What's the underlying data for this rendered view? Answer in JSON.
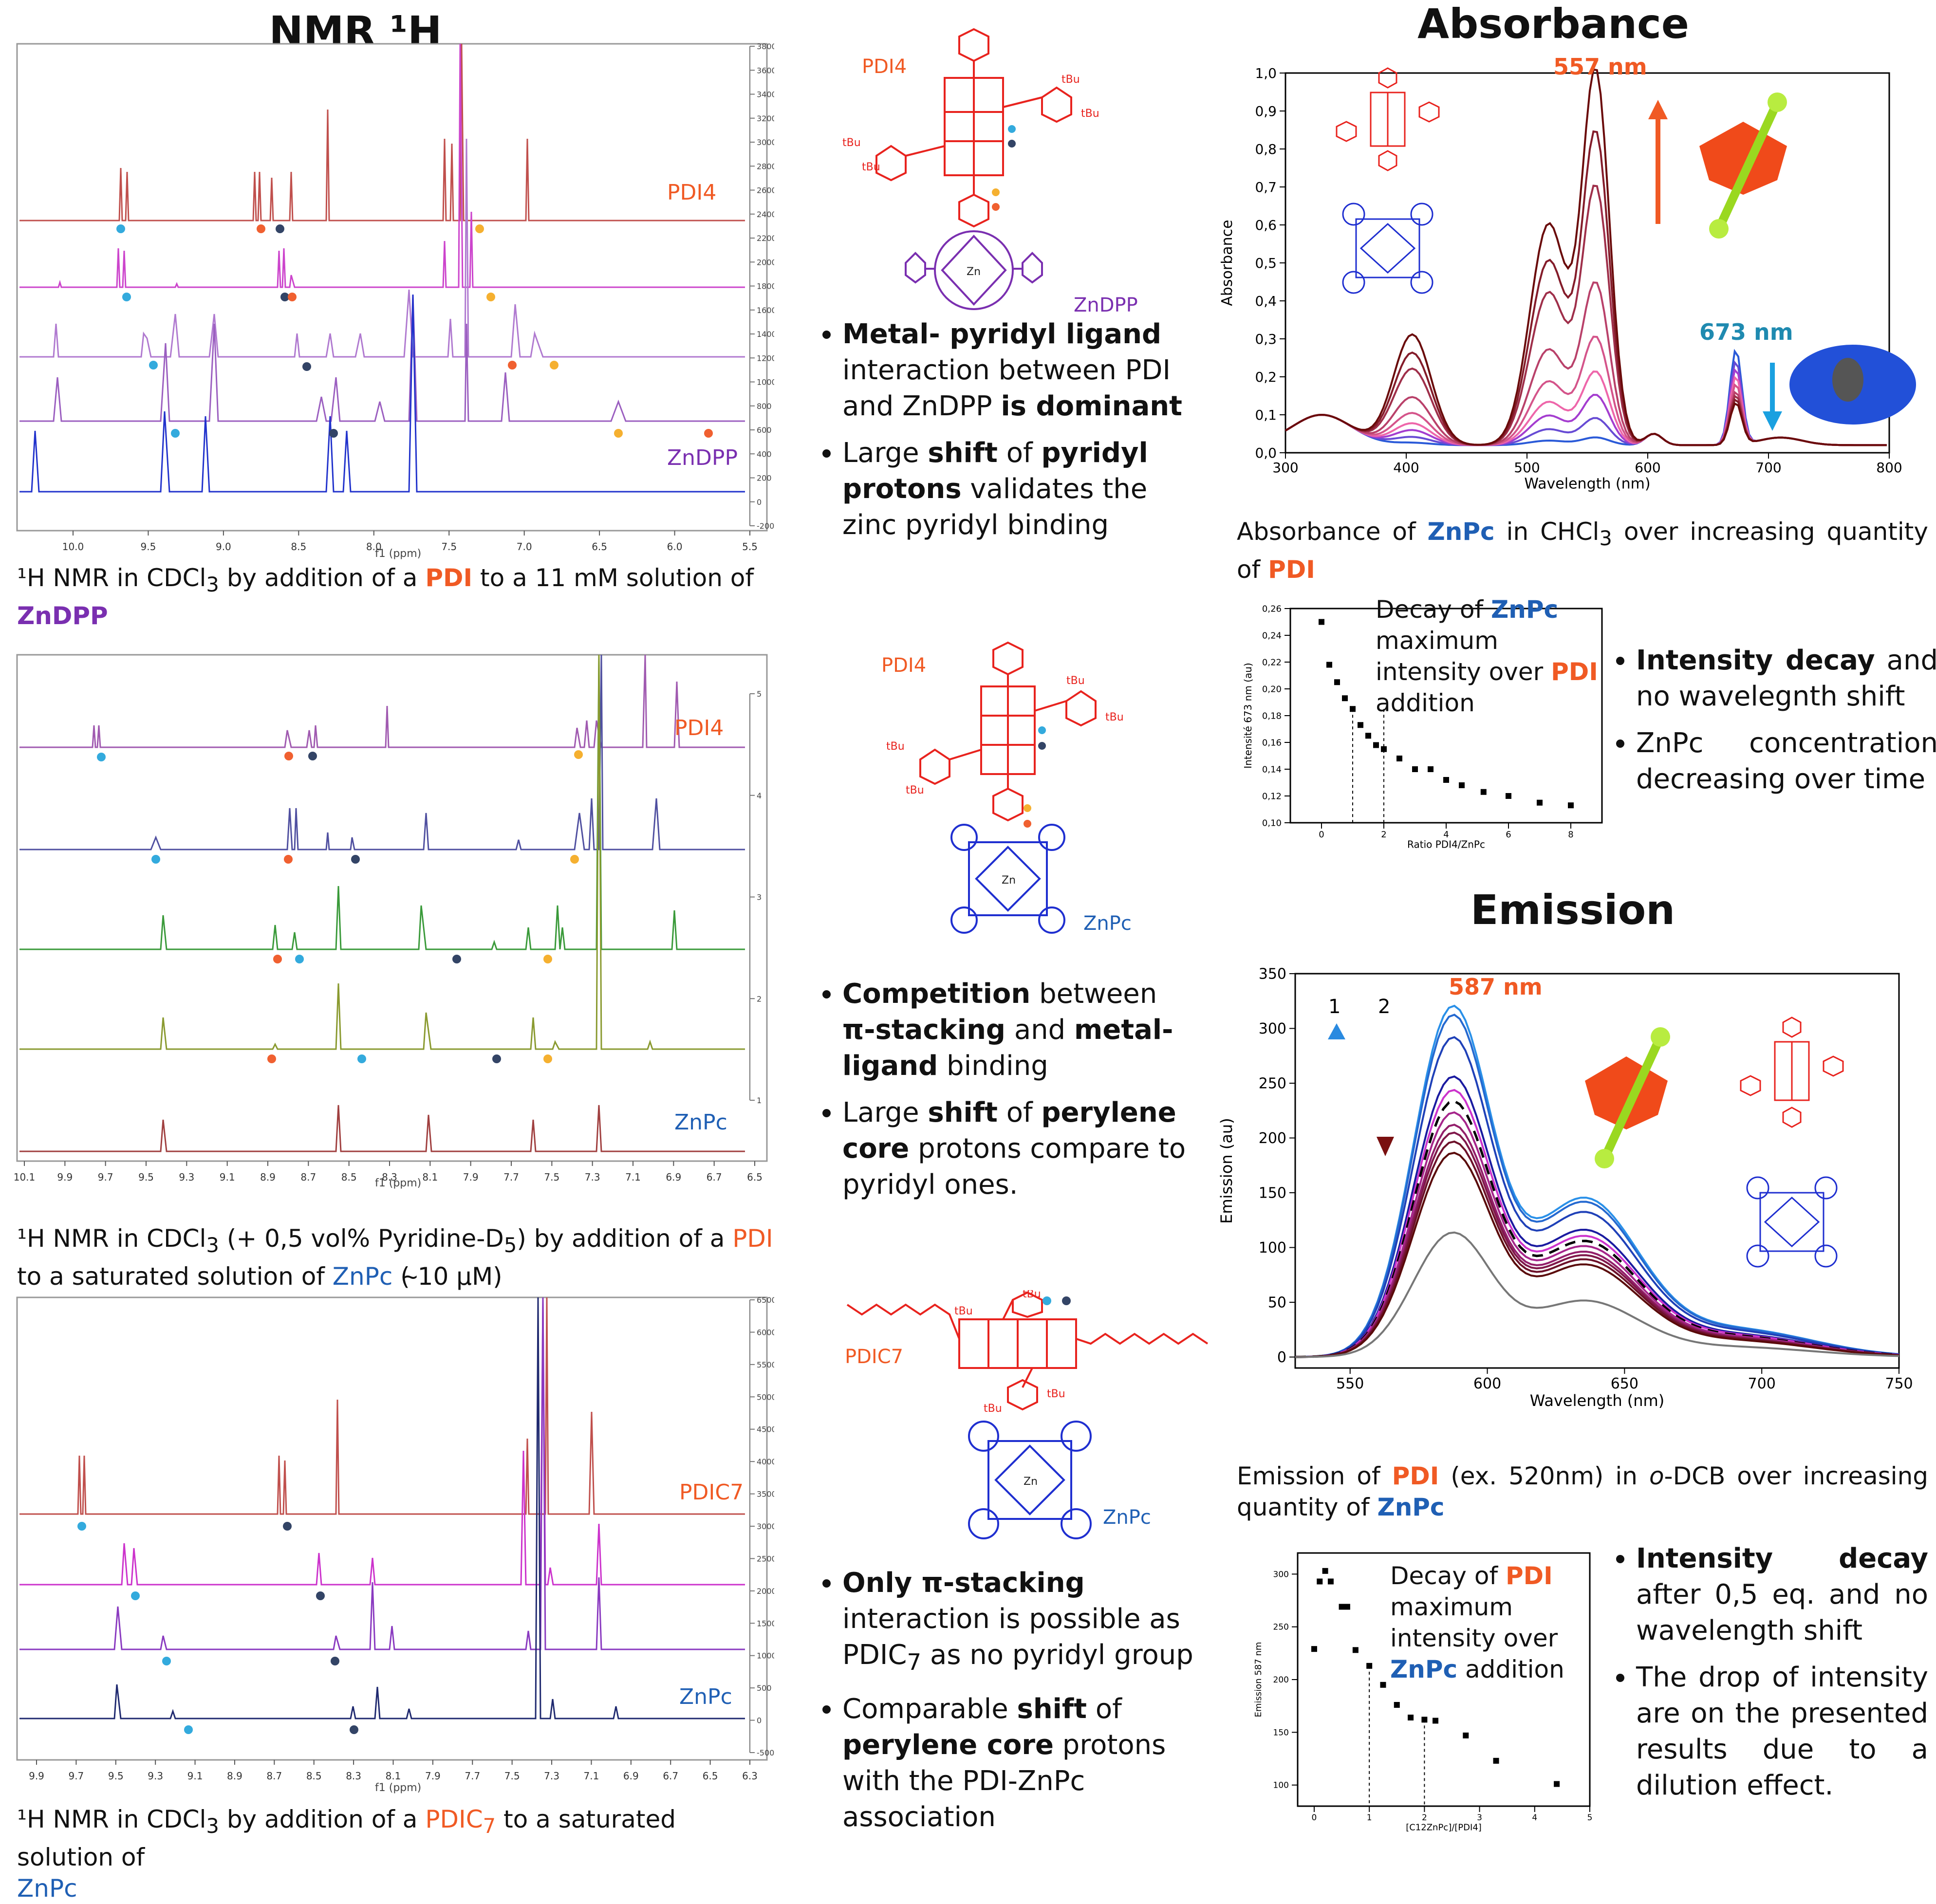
{
  "nmr_title": "NMR ¹H",
  "absorbance_title": "Absorbance",
  "emission_title": "Emission",
  "panel1": {
    "trace_labels": {
      "top": "PDI4",
      "bottom": "ZnDPP"
    },
    "x_ticks": [
      "10.0",
      "9.5",
      "9.0",
      "8.5",
      "8.0",
      "7.5",
      "7.0",
      "6.5",
      "6.0",
      "5.5"
    ],
    "y_ticks": [
      "3800",
      "3600",
      "3400",
      "3200",
      "3000",
      "2800",
      "2600",
      "2400",
      "2200",
      "2000",
      "1800",
      "1600",
      "1400",
      "1200",
      "1000",
      "800",
      "600",
      "400",
      "200",
      "0",
      "-200"
    ],
    "x_unit": "f1 (ppm)",
    "caption": {
      "pre": "¹H NMR in CDCl",
      "sub": "3",
      "mid": " by addition of a ",
      "pdi": "PDI",
      "post": " to a 11 mM solution of ",
      "target": "ZnDPP"
    }
  },
  "panel2": {
    "trace_labels": {
      "top": "PDI4",
      "bottom": "ZnPc"
    },
    "x_ticks": [
      "10.1",
      "9.9",
      "9.7",
      "9.5",
      "9.3",
      "9.1",
      "8.9",
      "8.7",
      "8.5",
      "8.3",
      "8.1",
      "7.9",
      "7.7",
      "7.5",
      "7.3",
      "7.1",
      "6.9",
      "6.7",
      "6.5"
    ],
    "y_ticks": [
      "5",
      "4",
      "3",
      "2",
      "1"
    ],
    "x_unit": "f1 (ppm)",
    "caption": {
      "pre": "¹H NMR in CDCl",
      "sub": "3",
      "mid": " (+ 0,5 vol% Pyridine-D",
      "sub2": "5",
      "mid2": ") by addition of a ",
      "pdi": "PDI",
      "post": " to a saturated solution of ",
      "target": "ZnPc",
      "post2": " ( ̴10 µM)"
    }
  },
  "panel3": {
    "trace_labels": {
      "top": "PDIC7",
      "bottom": "ZnPc"
    },
    "x_ticks": [
      "9.9",
      "9.7",
      "9.5",
      "9.3",
      "9.1",
      "8.9",
      "8.7",
      "8.5",
      "8.3",
      "8.1",
      "7.9",
      "7.7",
      "7.5",
      "7.3",
      "7.1",
      "6.9",
      "6.7",
      "6.5",
      "6.3"
    ],
    "y_ticks": [
      "6500",
      "6000",
      "5500",
      "5000",
      "4500",
      "4000",
      "3500",
      "3000",
      "2500",
      "2000",
      "1500",
      "1000",
      "500",
      "0",
      "-500"
    ],
    "x_unit": "f1 (ppm)",
    "caption": {
      "pre": "¹H NMR in CDCl",
      "sub": "3",
      "mid": " by addition of a ",
      "pdi": "PDIC",
      "pdisub": "7",
      "post": " to a saturated solution of ",
      "target": "ZnPc"
    }
  },
  "structures": {
    "s1_top": "PDI4",
    "s1_bottom": "ZnDPP",
    "s2_top": "PDI4",
    "s2_bottom": "ZnPc",
    "s3_top": "PDIC7",
    "s3_bottom": "ZnPc",
    "tbu": "tBu",
    "zn": "Zn"
  },
  "bullets1": [
    {
      "b1": "Metal- pyridyl ligand",
      "t1": " interaction between PDI and ZnDPP ",
      "b2": "is dominant"
    },
    {
      "t0": "Large ",
      "b1": "shift",
      "t1": " of ",
      "b2": "pyridyl protons",
      "t2": " validates the zinc pyridyl binding"
    }
  ],
  "bullets2": [
    {
      "b1": "Competition",
      "t1": " between ",
      "b2": "π-stacking",
      "t2": " and ",
      "b3": "metal-ligand",
      "t3": " binding"
    },
    {
      "t0": "Large ",
      "b1": "shift",
      "t1": " of ",
      "b2": "perylene core",
      "t2": " protons compare to pyridyl ones."
    }
  ],
  "bullets3": [
    {
      "b1": "Only π-stacking",
      "t1": " interaction is possible as PDIC",
      "sub": "7",
      "t2": " as no pyridyl group"
    },
    {
      "t0": "Comparable ",
      "b1": "shift",
      "t1": " of ",
      "b2": "perylene core",
      "t2": " protons with the PDI-ZnPc association"
    }
  ],
  "absorbance": {
    "peak1": "557 nm",
    "peak2": "673 nm",
    "caption": {
      "pre": "Absorbance of ",
      "b1": "ZnPc",
      "mid": " in CHCl",
      "sub": "3",
      "post": " over increasing quantity of ",
      "b2": "PDI"
    }
  },
  "decay1": {
    "title_pre": "Decay of ",
    "title_b": "ZnPc",
    "title_mid": " maximum intensity over ",
    "title_b2": "PDI",
    "title_post": " addition",
    "bullets": [
      {
        "b1": "Intensity decay",
        "t1": " and no wavelegnth shift"
      },
      {
        "t0": "ZnPc concentration decreasing over time"
      }
    ]
  },
  "emission": {
    "peak": "587 nm",
    "arrow1": "1",
    "arrow2": "2",
    "caption": {
      "pre": "Emission of ",
      "b1": "PDI",
      "mid": " (ex. 520nm) in ",
      "ital": "o",
      "mid2": "-DCB over increasing quantity of ",
      "b2": "ZnPc"
    }
  },
  "decay2": {
    "title_pre": "Decay of ",
    "title_b": "PDI",
    "title_mid": " maximum intensity over ",
    "title_b2": "ZnPc",
    "title_post": " addition",
    "bullets": [
      {
        "b1": "Intensity decay",
        "t1": " after 0,5 eq. and no wavelength shift"
      },
      {
        "t0": "The drop of intensity are on the presented results due to a dilution effect."
      }
    ]
  },
  "chart_data": [
    {
      "type": "line",
      "xlabel": "Wavelength (nm)",
      "ylabel": "Absorbance",
      "xlim": [
        300,
        800
      ],
      "ylim": [
        0,
        1.0
      ],
      "x_ticks": [
        "300",
        "400",
        "500",
        "600",
        "700",
        "800"
      ],
      "y_ticks": [
        "0,0",
        "0,1",
        "0,2",
        "0,3",
        "0,4",
        "0,5",
        "0,6",
        "0,7",
        "0,8",
        "0,9",
        "1,0"
      ],
      "series_peak557": [
        0.02,
        0.07,
        0.13,
        0.19,
        0.28,
        0.42,
        0.67,
        0.81,
        0.97
      ],
      "series_peak673": [
        0.25,
        0.22,
        0.2,
        0.18,
        0.16,
        0.14,
        0.13,
        0.12,
        0.11
      ]
    },
    {
      "type": "scatter",
      "xlabel": "Ratio PDI4/ZnPc",
      "ylabel": "Intensité 673 nm (au)",
      "xlim": [
        -1,
        9
      ],
      "ylim": [
        0.1,
        0.26
      ],
      "x_ticks": [
        "0",
        "2",
        "4",
        "6",
        "8"
      ],
      "y_ticks": [
        "0,10",
        "0,12",
        "0,14",
        "0,16",
        "0,18",
        "0,20",
        "0,22",
        "0,24",
        "0,26"
      ],
      "x": [
        0,
        0.25,
        0.5,
        0.75,
        1.0,
        1.25,
        1.5,
        1.75,
        2.0,
        2.5,
        3.0,
        3.5,
        4.0,
        4.5,
        5.2,
        6.0,
        7.0,
        8.0
      ],
      "y": [
        0.25,
        0.218,
        0.205,
        0.193,
        0.185,
        0.173,
        0.165,
        0.158,
        0.155,
        0.148,
        0.14,
        0.14,
        0.132,
        0.128,
        0.123,
        0.12,
        0.115,
        0.113
      ]
    },
    {
      "type": "line",
      "xlabel": "Wavelength (nm)",
      "ylabel": "Emission (au)",
      "xlim": [
        530,
        750
      ],
      "ylim": [
        -10,
        350
      ],
      "x_ticks": [
        "550",
        "600",
        "650",
        "700",
        "750"
      ],
      "y_ticks": [
        "0",
        "50",
        "100",
        "150",
        "200",
        "250",
        "300",
        "350"
      ],
      "peaks_587": [
        313,
        305,
        285,
        250,
        238,
        228,
        218,
        207,
        200,
        192,
        182,
        111
      ]
    },
    {
      "type": "scatter",
      "xlabel": "[C12ZnPc]/[PDI4]",
      "ylabel": "Emission 587 nm",
      "xlim": [
        -0.3,
        5
      ],
      "ylim": [
        80,
        320
      ],
      "x_ticks": [
        "0",
        "1",
        "2",
        "3",
        "4",
        "5"
      ],
      "y_ticks": [
        "100",
        "150",
        "200",
        "250",
        "300"
      ],
      "x": [
        0,
        0.1,
        0.2,
        0.3,
        0.5,
        0.6,
        0.75,
        1.0,
        1.25,
        1.5,
        1.75,
        2.0,
        2.2,
        2.75,
        3.3,
        4.4
      ],
      "y": [
        229,
        293,
        303,
        293,
        269,
        269,
        228,
        213,
        195,
        176,
        164,
        162,
        161,
        147,
        123,
        101
      ]
    }
  ]
}
